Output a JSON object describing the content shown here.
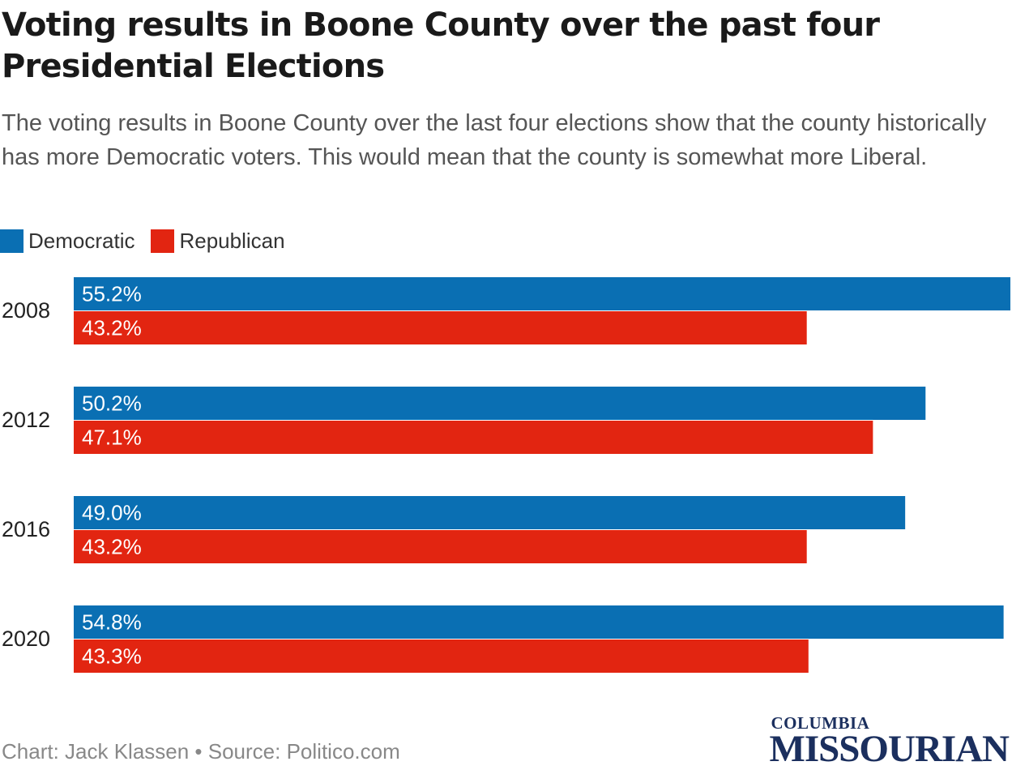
{
  "title": "Voting results in Boone County over the past four Presidential Elections",
  "subtitle": "The voting results in Boone County over the last four elections show that the county historically has more Democratic voters. This would mean that the county is somewhat more Liberal.",
  "legend": [
    {
      "label": "Democratic",
      "color": "#0a6fb3"
    },
    {
      "label": "Republican",
      "color": "#e22511"
    }
  ],
  "footer": "Chart: Jack Klassen • Source: Politico.com",
  "logo": {
    "top": "COLUMBIA",
    "bottom": "MISSOURIAN"
  },
  "chart_data": {
    "type": "bar",
    "orientation": "horizontal",
    "categories": [
      "2008",
      "2012",
      "2016",
      "2020"
    ],
    "series": [
      {
        "name": "Democratic",
        "color": "#0a6fb3",
        "values": [
          55.2,
          50.2,
          49.0,
          54.8
        ],
        "labels": [
          "55.2%",
          "50.2%",
          "49.0%",
          "54.8%"
        ]
      },
      {
        "name": "Republican",
        "color": "#e22511",
        "values": [
          43.2,
          47.1,
          43.2,
          43.3
        ],
        "labels": [
          "43.2%",
          "47.1%",
          "43.2%",
          "43.3%"
        ]
      }
    ],
    "title": "Voting results in Boone County over the past four Presidential Elections",
    "xlabel": "",
    "ylabel": "",
    "xlim": [
      0,
      55.2
    ],
    "grid": false,
    "legend_position": "top-left"
  }
}
